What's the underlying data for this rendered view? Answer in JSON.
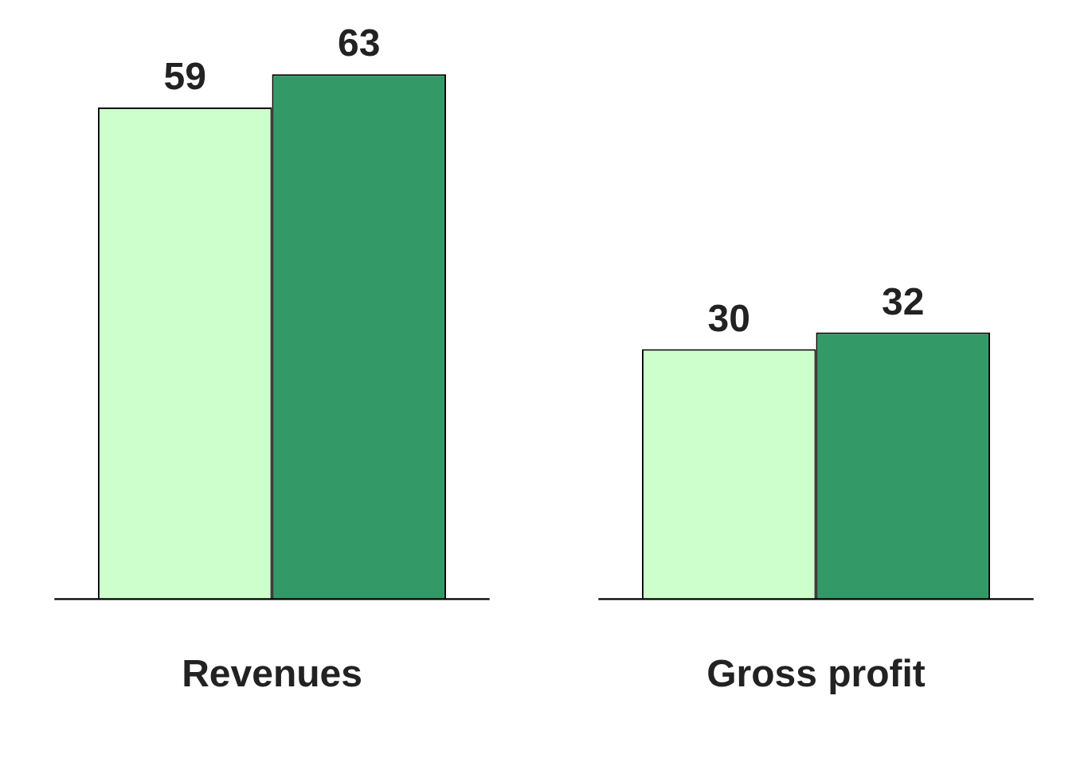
{
  "chart_data": {
    "type": "bar",
    "categories": [
      "Revenues",
      "Gross profit"
    ],
    "series": [
      {
        "color": "#ccffcc",
        "values": [
          59,
          30
        ]
      },
      {
        "color": "#339966",
        "values": [
          63,
          32
        ]
      }
    ],
    "data_labels": true,
    "grid": false,
    "legend": false
  }
}
